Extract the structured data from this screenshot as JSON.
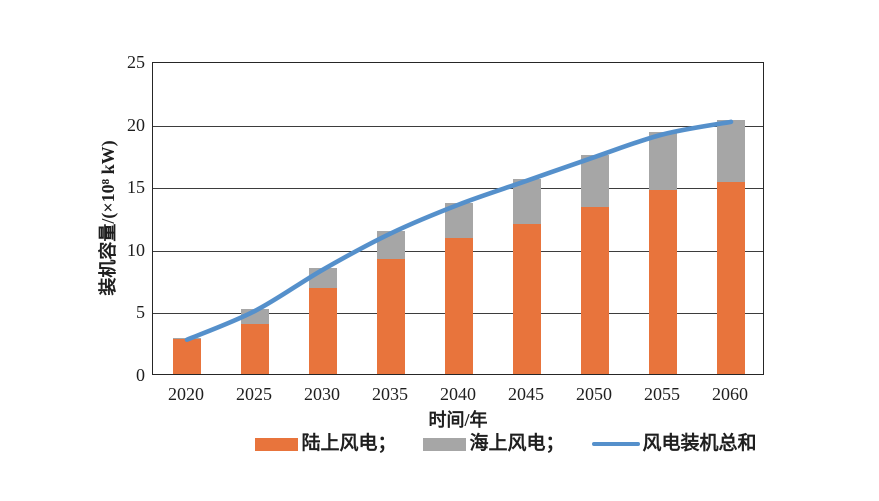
{
  "chart_data": {
    "type": "bar",
    "subtype": "stacked-bar-with-line-overlay",
    "title": "",
    "xlabel": "时间/年",
    "ylabel": "装机容量/(×10⁸ kW)",
    "categories": [
      "2020",
      "2025",
      "2030",
      "2035",
      "2040",
      "2045",
      "2050",
      "2055",
      "2060"
    ],
    "series": [
      {
        "name": "陆上风电",
        "type": "bar",
        "color": "#E8743C",
        "values": [
          2.8,
          4.0,
          6.9,
          9.2,
          10.9,
          12.0,
          13.3,
          14.7,
          15.3
        ]
      },
      {
        "name": "海上风电",
        "type": "bar",
        "color": "#A6A6A6",
        "values": [
          0.1,
          1.2,
          1.6,
          2.2,
          2.8,
          3.6,
          4.2,
          4.6,
          5.0
        ]
      },
      {
        "name": "风电装机总和",
        "type": "line",
        "color": "#5590CB",
        "values": [
          2.9,
          5.2,
          8.5,
          11.4,
          13.7,
          15.6,
          17.5,
          19.3,
          20.3
        ]
      }
    ],
    "ylim": [
      0,
      25
    ],
    "yticks": [
      0,
      5,
      10,
      15,
      20,
      25
    ],
    "grid": "horizontal",
    "gridline_color": "#3d3d3d",
    "axis_border": true,
    "legend_position": "bottom",
    "legend": [
      {
        "label": "陆上风电；",
        "swatch": "rect",
        "color": "#E8743C"
      },
      {
        "label": "海上风电；",
        "swatch": "rect",
        "color": "#A6A6A6"
      },
      {
        "label": "风电装机总和",
        "swatch": "line",
        "color": "#5590CB"
      }
    ]
  }
}
